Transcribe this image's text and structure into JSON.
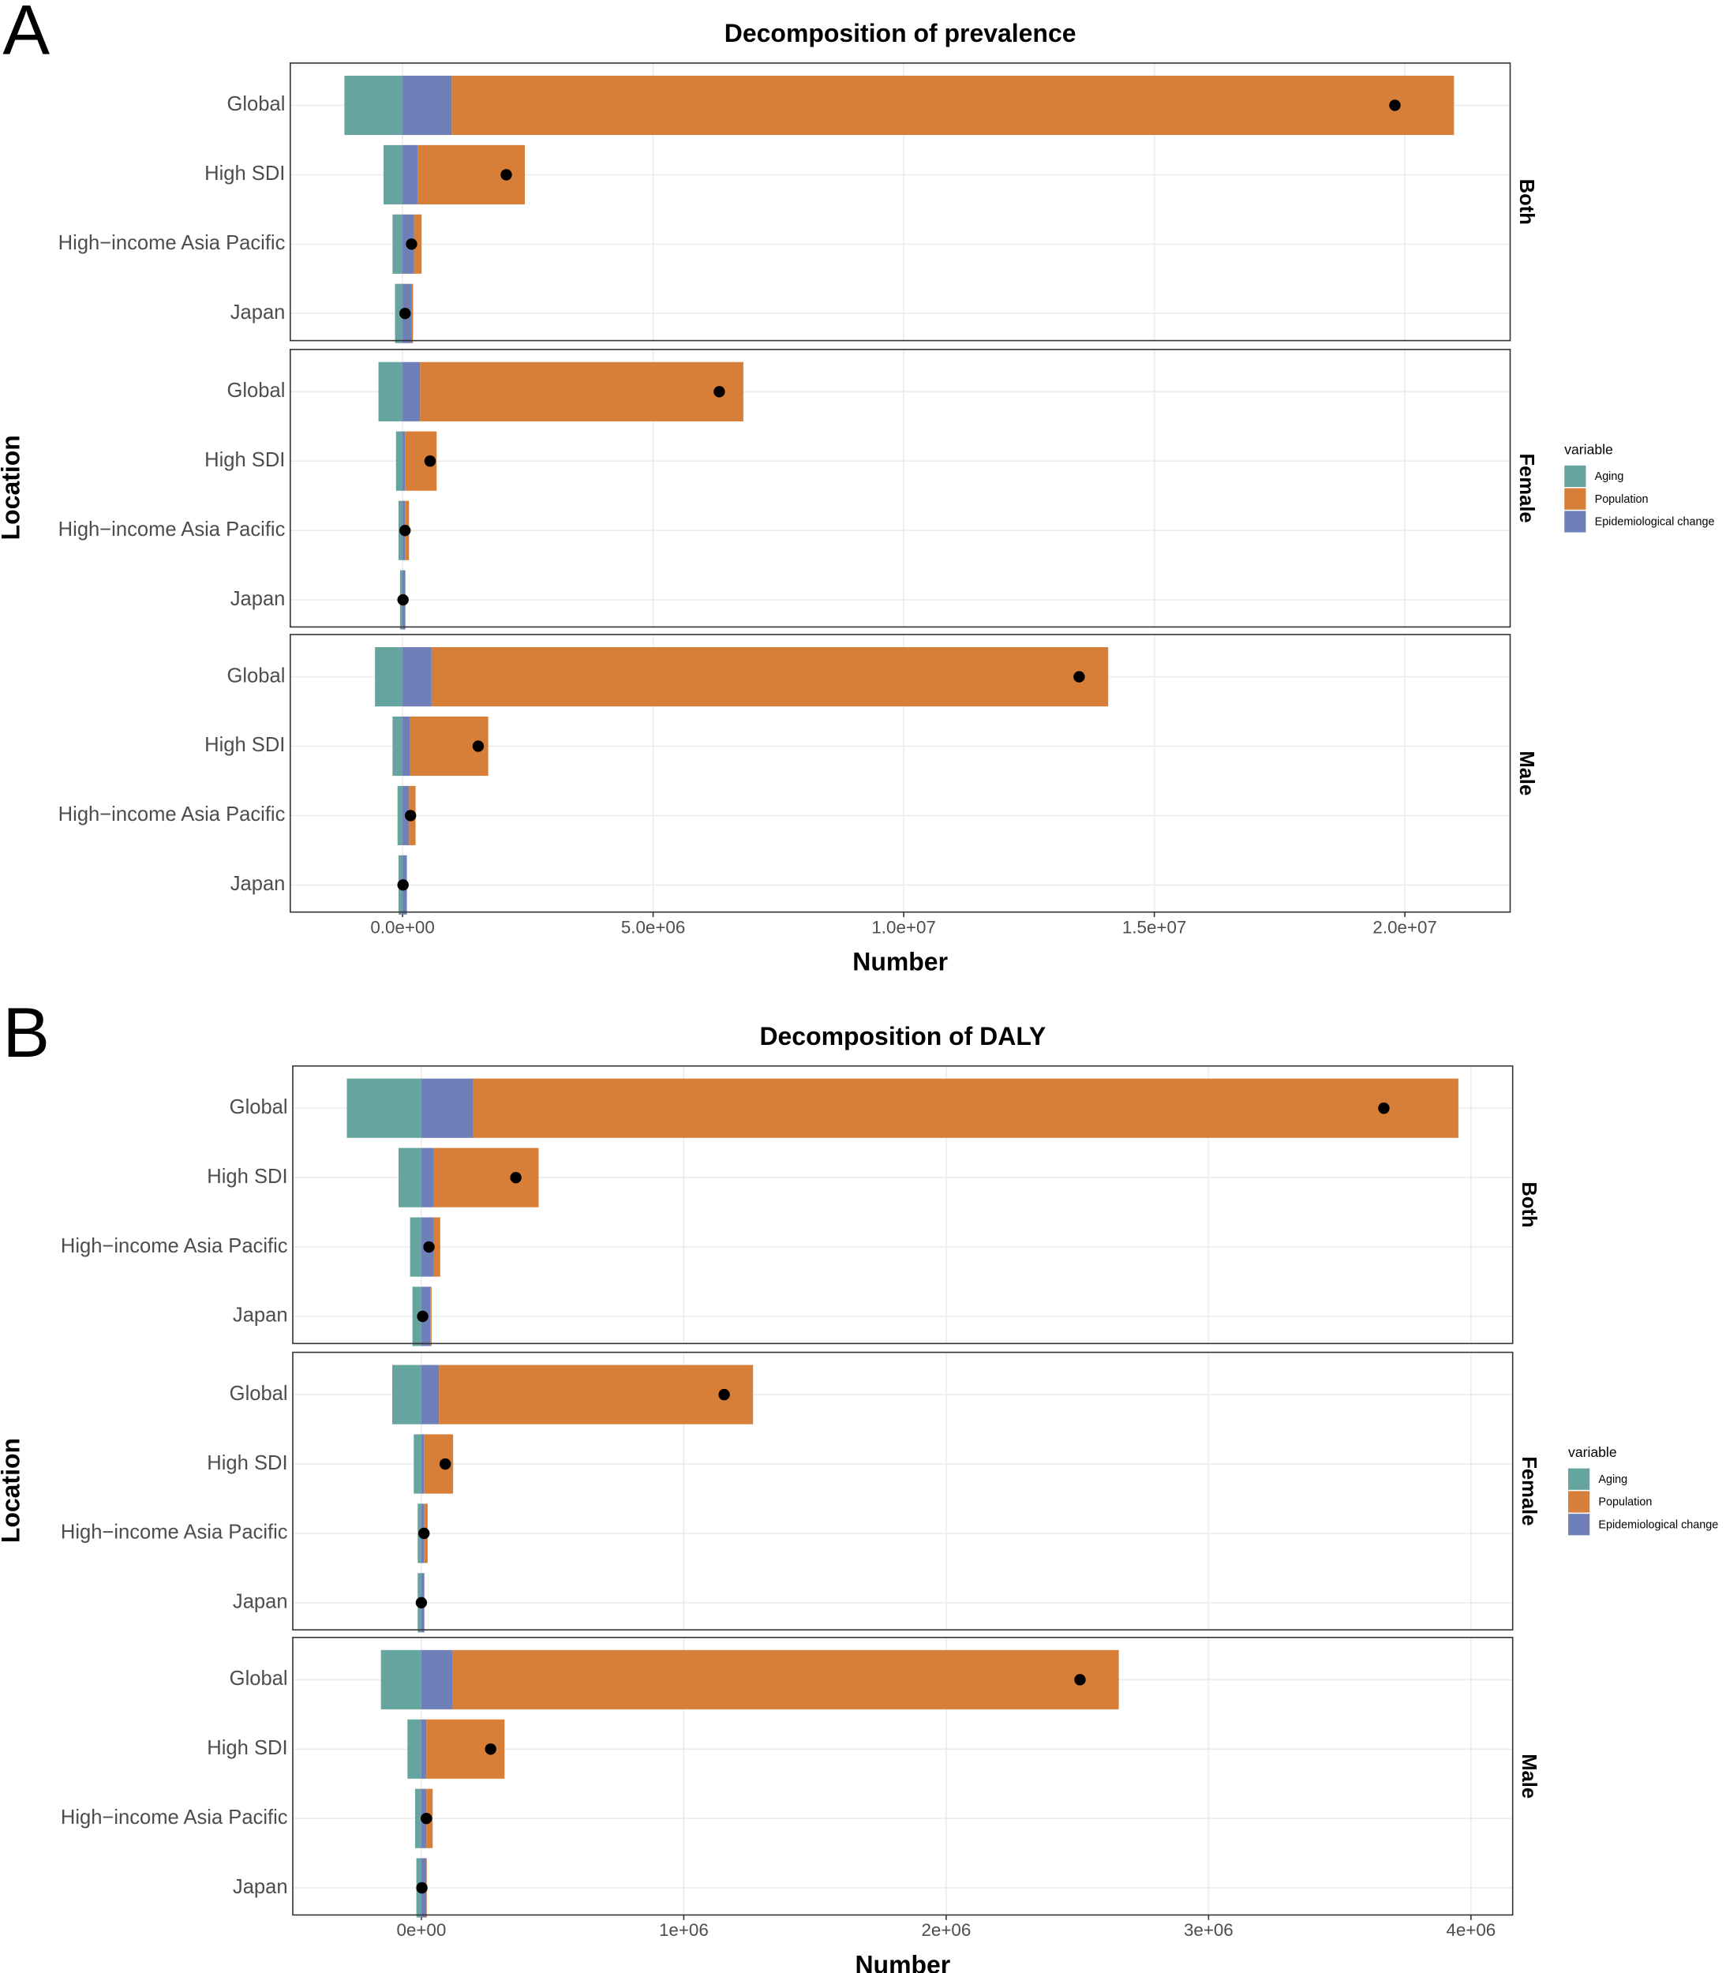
{
  "chart_data": [
    {
      "type": "bar",
      "panel_label": "A",
      "title": "Decomposition of prevalence",
      "xlabel": "Number",
      "ylabel": "Location",
      "legend_title": "variable",
      "categories": [
        "Global",
        "High SDI",
        "High−income Asia Pacific",
        "Japan"
      ],
      "facets": [
        "Both",
        "Female",
        "Male"
      ],
      "series": [
        {
          "name": "Aging",
          "color": "#66a59f",
          "values": [
            [
              -1160000,
              -380000,
              -200000,
              -150000
            ],
            [
              -480000,
              -130000,
              -80000,
              -50000
            ],
            [
              -550000,
              -200000,
              -100000,
              -80000
            ]
          ]
        },
        {
          "name": "Population",
          "color": "#d77f38",
          "values": [
            [
              20000000,
              2140000,
              150000,
              30000
            ],
            [
              6450000,
              630000,
              80000,
              10000
            ],
            [
              13500000,
              1560000,
              130000,
              10000
            ]
          ]
        },
        {
          "name": "Epidemiological change",
          "color": "#6f7fb8",
          "values": [
            [
              980000,
              300000,
              230000,
              180000
            ],
            [
              350000,
              50000,
              50000,
              50000
            ],
            [
              580000,
              150000,
              130000,
              80000
            ]
          ]
        }
      ],
      "totals": [
        [
          19800000,
          2070000,
          180000,
          50000
        ],
        [
          6320000,
          550000,
          50000,
          10000
        ],
        [
          13500000,
          1510000,
          160000,
          10000
        ]
      ],
      "xlim": [
        -2240000,
        22100000
      ],
      "xticks": [
        {
          "value": 0,
          "label": "0.0e+00"
        },
        {
          "value": 5000000,
          "label": "5.0e+06"
        },
        {
          "value": 10000000,
          "label": "1.0e+07"
        },
        {
          "value": 15000000,
          "label": "1.5e+07"
        },
        {
          "value": 20000000,
          "label": "2.0e+07"
        }
      ],
      "grid": true
    },
    {
      "type": "bar",
      "panel_label": "B",
      "title": "Decomposition of DALY",
      "xlabel": "Number",
      "ylabel": "Location",
      "legend_title": "variable",
      "categories": [
        "Global",
        "High SDI",
        "High−income Asia Pacific",
        "Japan"
      ],
      "facets": [
        "Both",
        "Female",
        "Male"
      ],
      "series": [
        {
          "name": "Aging",
          "color": "#66a59f",
          "values": [
            [
              -284000,
              -87000,
              -43000,
              -34000
            ],
            [
              -111000,
              -29000,
              -14000,
              -14000
            ],
            [
              -154000,
              -53000,
              -24000,
              -19000
            ]
          ]
        },
        {
          "name": "Population",
          "color": "#d77f38",
          "values": [
            [
              3755000,
              399000,
              24000,
              5000
            ],
            [
              1197000,
              111000,
              14000,
              2000
            ],
            [
              2538000,
              298000,
              24000,
              2000
            ]
          ]
        },
        {
          "name": "Epidemiological change",
          "color": "#6f7fb8",
          "values": [
            [
              197000,
              48000,
              48000,
              34000
            ],
            [
              67000,
              10000,
              10000,
              10000
            ],
            [
              120000,
              19000,
              19000,
              19000
            ]
          ]
        }
      ],
      "totals": [
        [
          3668000,
          360000,
          29000,
          5000
        ],
        [
          1154000,
          91000,
          10000,
          0
        ],
        [
          2510000,
          264000,
          19000,
          2000
        ]
      ],
      "xlim": [
        -490000,
        4159000
      ],
      "xticks": [
        {
          "value": 0,
          "label": "0e+00"
        },
        {
          "value": 1000000,
          "label": "1e+06"
        },
        {
          "value": 2000000,
          "label": "2e+06"
        },
        {
          "value": 3000000,
          "label": "3e+06"
        },
        {
          "value": 4000000,
          "label": "4e+06"
        }
      ],
      "grid": true
    }
  ]
}
